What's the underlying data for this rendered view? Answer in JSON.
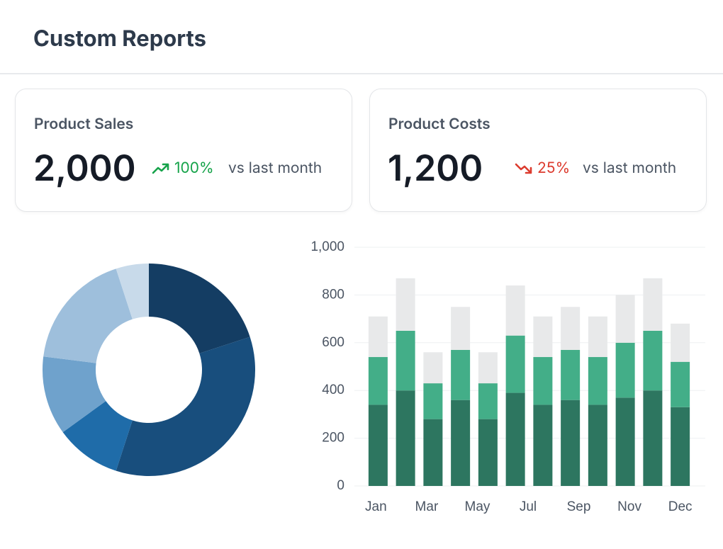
{
  "header": {
    "title": "Custom Reports"
  },
  "cards": [
    {
      "title": "Product Sales",
      "value": "2,000",
      "change": "100%",
      "trend": "up",
      "comparison": "vs last month"
    },
    {
      "title": "Product Costs",
      "value": "1,200",
      "change": "25%",
      "trend": "down",
      "comparison": "vs last month"
    }
  ],
  "chart_data": [
    {
      "type": "donut",
      "values": [
        20,
        35,
        10,
        12,
        18,
        5
      ],
      "colors": [
        "#143d63",
        "#184e7d",
        "#1f6ca9",
        "#6fa2cc",
        "#9ebfdc",
        "#c8daea"
      ]
    },
    {
      "type": "stacked_bar",
      "categories": [
        "Jan",
        null,
        "Mar",
        null,
        "May",
        null,
        "Jul",
        null,
        "Sep",
        null,
        "Nov",
        "Dec"
      ],
      "series": [
        {
          "color": "#2d7660",
          "values": [
            340,
            400,
            280,
            360,
            280,
            390,
            340,
            360,
            340,
            370,
            400,
            330
          ]
        },
        {
          "color": "#43ae88",
          "values": [
            200,
            250,
            150,
            210,
            150,
            240,
            200,
            210,
            200,
            230,
            250,
            190
          ]
        },
        {
          "color": "#e8e9ea",
          "values": [
            170,
            220,
            130,
            180,
            130,
            210,
            170,
            180,
            170,
            200,
            220,
            160
          ]
        }
      ],
      "ylim": [
        0,
        1000
      ],
      "yticks": [
        0,
        200,
        400,
        600,
        800,
        {
          "value": 1000,
          "label": "1,000"
        }
      ],
      "grid": true
    }
  ]
}
